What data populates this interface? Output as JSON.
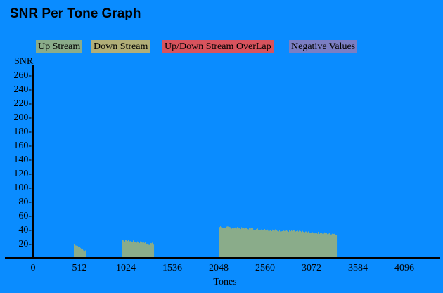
{
  "page": {
    "title": "SNR Per Tone Graph"
  },
  "legend": {
    "items": [
      {
        "label": "Up Stream",
        "color": "#8aac8a"
      },
      {
        "label": "Down Stream",
        "color": "#b1ae78"
      },
      {
        "label": "Up/Down Stream OverLap",
        "color": "#d8535d"
      },
      {
        "label": "Negative Values",
        "color": "#7b7ec3"
      }
    ]
  },
  "chart_data": {
    "type": "bar",
    "title": "SNR Per Tone Graph",
    "xlabel": "Tones",
    "ylabel": "SNR",
    "xlim": [
      0,
      4500
    ],
    "ylim": [
      0,
      270
    ],
    "xticks": [
      "0",
      "512",
      "1024",
      "1536",
      "2048",
      "2560",
      "3072",
      "3584",
      "4096"
    ],
    "xtick_values": [
      0,
      512,
      1024,
      1536,
      2048,
      2560,
      3072,
      3584,
      4096
    ],
    "yticks": [
      "260-",
      "240-",
      "220-",
      "200-",
      "180-",
      "160-",
      "140-",
      "120-",
      "100-",
      "80-",
      "60-",
      "40-",
      "20-"
    ],
    "ytick_values": [
      260,
      240,
      220,
      200,
      180,
      160,
      140,
      120,
      100,
      80,
      60,
      40,
      20
    ],
    "grid": false,
    "legend_position": "top",
    "series": [
      {
        "name": "Up Stream",
        "color": "#8aac8a",
        "segments": [
          {
            "tone_start": 448,
            "tone_end": 580,
            "snr_start": 19,
            "snr_end": 9
          },
          {
            "tone_start": 976,
            "tone_end": 1336,
            "snr_start": 24,
            "snr_end": 19
          },
          {
            "tone_start": 2048,
            "tone_end": 3350,
            "snr_start": 43,
            "snr_end": 33
          }
        ]
      },
      {
        "name": "Down Stream",
        "color": "#b1ae78",
        "segments": []
      },
      {
        "name": "Up/Down Stream OverLap",
        "color": "#d8535d",
        "segments": []
      },
      {
        "name": "Negative Values",
        "color": "#7b7ec3",
        "segments": []
      }
    ]
  }
}
